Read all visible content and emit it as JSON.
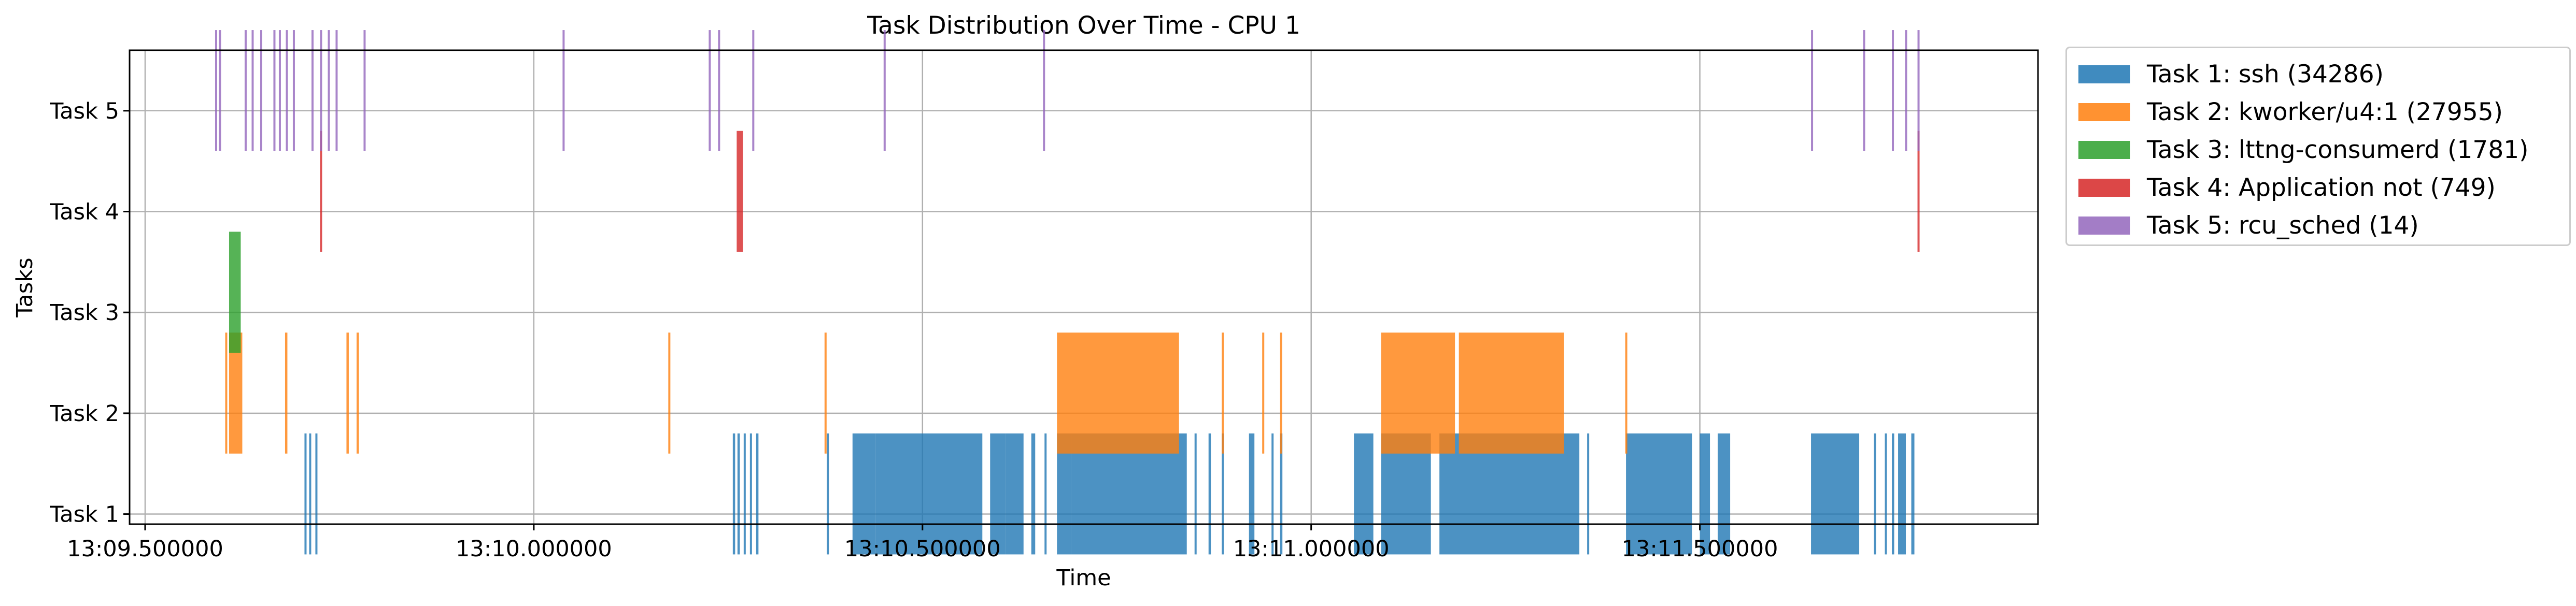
{
  "chart_data": {
    "type": "timeline",
    "title": "Task Distribution Over Time - CPU 1",
    "xlabel": "Time",
    "ylabel": "Tasks",
    "xlim": [
      -0.02,
      2.435
    ],
    "ylim": [
      0.9,
      5.6
    ],
    "grid": true,
    "legend_position": "outside-top-right",
    "x_ticks": [
      {
        "value": 0.0,
        "label": "13:09.500000"
      },
      {
        "value": 0.5,
        "label": "13:10.000000"
      },
      {
        "value": 1.0,
        "label": "13:10.500000"
      },
      {
        "value": 1.5,
        "label": "13:11.000000"
      },
      {
        "value": 2.0,
        "label": "13:11.500000"
      }
    ],
    "y_ticks": [
      {
        "value": 1,
        "label": "Task 1"
      },
      {
        "value": 2,
        "label": "Task 2"
      },
      {
        "value": 3,
        "label": "Task 3"
      },
      {
        "value": 4,
        "label": "Task 4"
      },
      {
        "value": 5,
        "label": "Task 5"
      }
    ],
    "time_unit": "seconds after 13:09.500000",
    "series": [
      {
        "name": "Task 1: ssh (34286)",
        "row": 1,
        "color": "#1f77b4",
        "intervals": [
          [
            0.205,
            0.207
          ],
          [
            0.211,
            0.213
          ],
          [
            0.219,
            0.221
          ],
          [
            0.756,
            0.759
          ],
          [
            0.762,
            0.765
          ],
          [
            0.77,
            0.772
          ],
          [
            0.778,
            0.78
          ],
          [
            0.786,
            0.789
          ],
          [
            0.877,
            0.879
          ],
          [
            0.91,
            0.94
          ],
          [
            0.94,
            1.077
          ],
          [
            1.087,
            1.107
          ],
          [
            1.107,
            1.13
          ],
          [
            1.14,
            1.145
          ],
          [
            1.157,
            1.158
          ],
          [
            1.173,
            1.191
          ],
          [
            1.191,
            1.34
          ],
          [
            1.35,
            1.352
          ],
          [
            1.368,
            1.371
          ],
          [
            1.385,
            1.387
          ],
          [
            1.42,
            1.427
          ],
          [
            1.449,
            1.451
          ],
          [
            1.46,
            1.463
          ],
          [
            1.555,
            1.58
          ],
          [
            1.59,
            1.654
          ],
          [
            1.665,
            1.845
          ],
          [
            1.855,
            1.857
          ],
          [
            1.905,
            1.99
          ],
          [
            2.0,
            2.013
          ],
          [
            2.023,
            2.039
          ],
          [
            2.143,
            2.205
          ],
          [
            2.224,
            2.226
          ],
          [
            2.238,
            2.24
          ],
          [
            2.247,
            2.25
          ],
          [
            2.255,
            2.265
          ],
          [
            2.272,
            2.276
          ]
        ]
      },
      {
        "name": "Task 2: kworker/u4:1 (27955)",
        "row": 2,
        "color": "#ff7f0e",
        "intervals": [
          [
            0.103,
            0.105
          ],
          [
            0.108,
            0.125
          ],
          [
            0.18,
            0.183
          ],
          [
            0.259,
            0.262
          ],
          [
            0.272,
            0.275
          ],
          [
            0.673,
            0.675
          ],
          [
            0.874,
            0.876
          ],
          [
            1.173,
            1.33
          ],
          [
            1.385,
            1.387
          ],
          [
            1.437,
            1.439
          ],
          [
            1.46,
            1.462
          ],
          [
            1.59,
            1.685
          ],
          [
            1.69,
            1.825
          ],
          [
            1.904,
            1.906
          ]
        ]
      },
      {
        "name": "Task 3: lttng-consumerd (1781)",
        "row": 3,
        "color": "#2ca02c",
        "intervals": [
          [
            0.108,
            0.123
          ]
        ]
      },
      {
        "name": "Task 4: Application not (749)",
        "row": 4,
        "color": "#d62728",
        "intervals": [
          [
            0.225,
            0.227
          ],
          [
            0.761,
            0.769
          ],
          [
            2.28,
            2.282
          ]
        ]
      },
      {
        "name": "Task 5: rcu_sched (14)",
        "row": 5,
        "color": "#9467bd",
        "intervals": [
          [
            0.09,
            0.092
          ],
          [
            0.095,
            0.097
          ],
          [
            0.128,
            0.13
          ],
          [
            0.137,
            0.139
          ],
          [
            0.148,
            0.15
          ],
          [
            0.165,
            0.167
          ],
          [
            0.172,
            0.174
          ],
          [
            0.181,
            0.183
          ],
          [
            0.19,
            0.192
          ],
          [
            0.214,
            0.216
          ],
          [
            0.225,
            0.227
          ],
          [
            0.235,
            0.237
          ],
          [
            0.245,
            0.247
          ],
          [
            0.281,
            0.283
          ],
          [
            0.537,
            0.539
          ],
          [
            0.725,
            0.727
          ],
          [
            0.737,
            0.739
          ],
          [
            0.781,
            0.783
          ],
          [
            0.95,
            0.952
          ],
          [
            1.155,
            1.157
          ],
          [
            2.143,
            2.145
          ],
          [
            2.21,
            2.212
          ],
          [
            2.247,
            2.249
          ],
          [
            2.264,
            2.266
          ],
          [
            2.28,
            2.282
          ]
        ]
      }
    ]
  }
}
